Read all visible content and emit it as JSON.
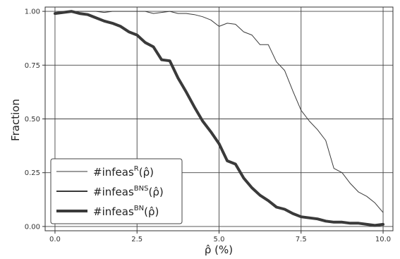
{
  "chart_data": {
    "type": "line",
    "xlabel": "ρ̂ (%)",
    "ylabel": "Fraction",
    "xlim": [
      -0.3,
      10.3
    ],
    "ylim": [
      -0.02,
      1.02
    ],
    "x_ticks": [
      "0.0",
      "2.5",
      "5.0",
      "7.5",
      "10.0"
    ],
    "x_tick_values": [
      0,
      2.5,
      5,
      7.5,
      10
    ],
    "y_ticks": [
      "0.00",
      "0.25",
      "0.50",
      "0.75",
      "1.00"
    ],
    "y_tick_values": [
      0,
      0.25,
      0.5,
      0.75,
      1
    ],
    "grid": true,
    "legend_position": "lower-left",
    "line_color": "#3a3a3a",
    "series": [
      {
        "legend_base": "#infeas",
        "legend_sup": "R",
        "legend_arg": "(ρ̂)",
        "weight": "thin",
        "x": [
          0,
          0.25,
          0.5,
          0.75,
          1.0,
          1.25,
          1.5,
          1.75,
          2.0,
          2.25,
          2.5,
          2.75,
          3.0,
          3.25,
          3.5,
          3.75,
          4.0,
          4.25,
          4.5,
          4.75,
          5.0,
          5.25,
          5.5,
          5.75,
          6.0,
          6.25,
          6.5,
          6.75,
          7.0,
          7.25,
          7.5,
          7.75,
          8.0,
          8.25,
          8.5,
          8.75,
          9.0,
          9.25,
          9.5,
          9.75,
          10.0
        ],
        "y": [
          0.99,
          0.995,
          1.0,
          1.0,
          1.0,
          1.0,
          0.995,
          1.0,
          1.0,
          1.0,
          1.0,
          1.0,
          0.99,
          0.995,
          1.0,
          0.99,
          0.99,
          0.985,
          0.975,
          0.96,
          0.93,
          0.945,
          0.94,
          0.905,
          0.89,
          0.845,
          0.845,
          0.765,
          0.725,
          0.63,
          0.54,
          0.49,
          0.45,
          0.4,
          0.27,
          0.25,
          0.2,
          0.16,
          0.14,
          0.11,
          0.065
        ]
      },
      {
        "legend_base": "#infeas",
        "legend_sup": "BNS",
        "legend_arg": "(ρ̂)",
        "weight": "medium",
        "x": [],
        "y": []
      },
      {
        "legend_base": "#infeas",
        "legend_sup": "BN",
        "legend_arg": "(ρ̂)",
        "weight": "thick",
        "x": [
          0,
          0.25,
          0.5,
          0.75,
          1.0,
          1.25,
          1.5,
          1.75,
          2.0,
          2.25,
          2.5,
          2.75,
          3.0,
          3.25,
          3.5,
          3.75,
          4.0,
          4.25,
          4.5,
          4.75,
          5.0,
          5.25,
          5.5,
          5.75,
          6.0,
          6.25,
          6.5,
          6.75,
          7.0,
          7.25,
          7.5,
          7.75,
          8.0,
          8.25,
          8.5,
          8.75,
          9.0,
          9.25,
          9.5,
          9.75,
          10.0
        ],
        "y": [
          0.99,
          0.995,
          1.0,
          0.99,
          0.985,
          0.97,
          0.955,
          0.945,
          0.93,
          0.905,
          0.89,
          0.855,
          0.835,
          0.775,
          0.77,
          0.69,
          0.625,
          0.555,
          0.49,
          0.44,
          0.385,
          0.305,
          0.29,
          0.225,
          0.18,
          0.145,
          0.12,
          0.09,
          0.08,
          0.06,
          0.045,
          0.04,
          0.035,
          0.025,
          0.02,
          0.02,
          0.015,
          0.015,
          0.01,
          0.005,
          0.01
        ]
      }
    ]
  }
}
